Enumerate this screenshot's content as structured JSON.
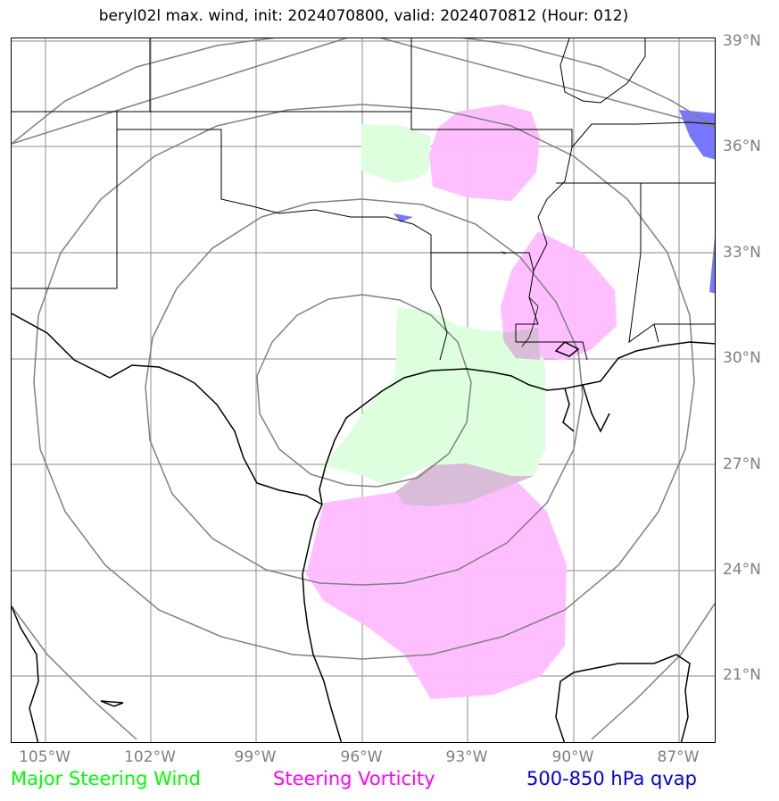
{
  "title": "beryl02l max. wind, init: 2024070800, valid: 2024070812 (Hour: 012)",
  "latitude_labels": [
    "39°N",
    "36°N",
    "33°N",
    "30°N",
    "27°N",
    "24°N",
    "21°N"
  ],
  "longitude_labels": [
    "105°W",
    "102°W",
    "99°W",
    "96°W",
    "93°W",
    "90°W",
    "87°W"
  ],
  "legend": {
    "steering_wind": {
      "label": "Major Steering Wind",
      "color": "#00ff00"
    },
    "steering_vorticity": {
      "label": "Steering Vorticity",
      "color": "#ff00ff"
    },
    "qvap": {
      "label": "500-850 hPa qvap",
      "color": "#0000dd"
    }
  },
  "fill_colors": {
    "steering_wind": "#ddffdd",
    "steering_vorticity": "#ffbbff",
    "qvap": "#7777ff"
  },
  "map_extent": {
    "lon_min": -106,
    "lon_max": -86,
    "lat_min": 19,
    "lat_max": 39
  },
  "range_rings_center": {
    "lon": -96,
    "lat": 28.3
  }
}
